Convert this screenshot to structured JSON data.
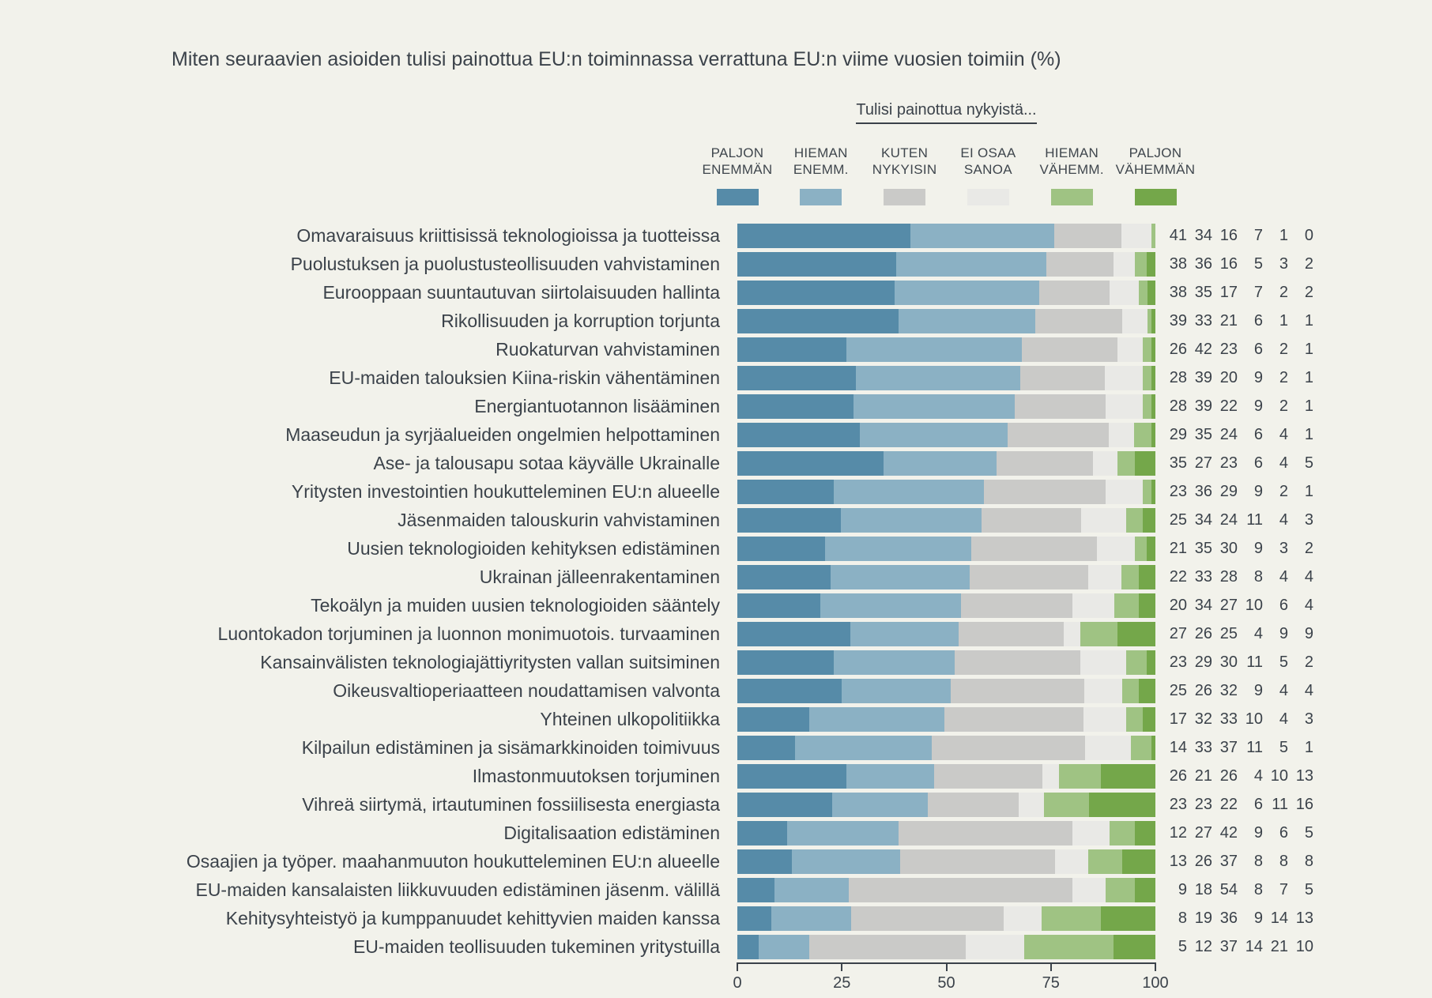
{
  "title": "Miten seuraavien asioiden tulisi painottua EU:n toiminnassa verrattuna EU:n viime vuosien toimiin (%)",
  "legend": {
    "header": "Tulisi painottua nykyistä...",
    "items": [
      {
        "name": "paljon-enemman",
        "line1": "PALJON",
        "line2": "ENEMMÄN",
        "color": "#568BA8"
      },
      {
        "name": "hieman-enemman",
        "line1": "HIEMAN",
        "line2": "ENEMM.",
        "color": "#8BB1C4"
      },
      {
        "name": "kuten-nykyisin",
        "line1": "KUTEN",
        "line2": "NYKYISIN",
        "color": "#CACAC8"
      },
      {
        "name": "ei-osaa-sanoa",
        "line1": "EI OSAA",
        "line2": "SANOA",
        "color": "#E9E9E6"
      },
      {
        "name": "hieman-vahemman",
        "line1": "HIEMAN",
        "line2": "VÄHEMM.",
        "color": "#9FC383"
      },
      {
        "name": "paljon-vahemman",
        "line1": "PALJON",
        "line2": "VÄHEMMÄN",
        "color": "#74A74A"
      }
    ]
  },
  "chart_data": {
    "type": "bar",
    "orientation": "horizontal",
    "stacked": true,
    "title": "Miten seuraavien asioiden tulisi painottua EU:n toiminnassa verrattuna EU:n viime vuosien toimiin (%)",
    "legend_title": "Tulisi painottua nykyistä...",
    "series_names": [
      "Paljon enemmän",
      "Hieman enemm.",
      "Kuten nykyisin",
      "Ei osaa sanoa",
      "Hieman vähemm.",
      "Paljon vähemmän"
    ],
    "series_colors": [
      "#568BA8",
      "#8BB1C4",
      "#CACAC8",
      "#E9E9E6",
      "#9FC383",
      "#74A74A"
    ],
    "xlim": [
      0,
      100
    ],
    "x_ticks": [
      0,
      25,
      50,
      75,
      100
    ],
    "value_labels_shown": true,
    "rows": [
      {
        "label": "Omavaraisuus kriittisissä teknologioissa ja tuotteissa",
        "values": [
          41,
          34,
          16,
          7,
          1,
          0
        ]
      },
      {
        "label": "Puolustuksen ja puolustusteollisuuden vahvistaminen",
        "values": [
          38,
          36,
          16,
          5,
          3,
          2
        ]
      },
      {
        "label": "Eurooppaan suuntautuvan siirtolaisuuden hallinta",
        "values": [
          38,
          35,
          17,
          7,
          2,
          2
        ]
      },
      {
        "label": "Rikollisuuden ja korruption torjunta",
        "values": [
          39,
          33,
          21,
          6,
          1,
          1
        ]
      },
      {
        "label": "Ruokaturvan vahvistaminen",
        "values": [
          26,
          42,
          23,
          6,
          2,
          1
        ]
      },
      {
        "label": "EU-maiden talouksien Kiina-riskin vähentäminen",
        "values": [
          28,
          39,
          20,
          9,
          2,
          1
        ]
      },
      {
        "label": "Energiantuotannon lisääminen",
        "values": [
          28,
          39,
          22,
          9,
          2,
          1
        ]
      },
      {
        "label": "Maaseudun ja syrjäalueiden ongelmien helpottaminen",
        "values": [
          29,
          35,
          24,
          6,
          4,
          1
        ]
      },
      {
        "label": "Ase- ja talousapu sotaa käyvälle Ukrainalle",
        "values": [
          35,
          27,
          23,
          6,
          4,
          5
        ]
      },
      {
        "label": "Yritysten investointien houkutteleminen EU:n alueelle",
        "values": [
          23,
          36,
          29,
          9,
          2,
          1
        ]
      },
      {
        "label": "Jäsenmaiden talouskurin vahvistaminen",
        "values": [
          25,
          34,
          24,
          11,
          4,
          3
        ]
      },
      {
        "label": "Uusien teknologioiden kehityksen edistäminen",
        "values": [
          21,
          35,
          30,
          9,
          3,
          2
        ]
      },
      {
        "label": "Ukrainan jälleenrakentaminen",
        "values": [
          22,
          33,
          28,
          8,
          4,
          4
        ]
      },
      {
        "label": "Tekoälyn ja muiden uusien teknologioiden sääntely",
        "values": [
          20,
          34,
          27,
          10,
          6,
          4
        ]
      },
      {
        "label": "Luontokadon torjuminen ja luonnon monimuotois. turvaaminen",
        "values": [
          27,
          26,
          25,
          4,
          9,
          9
        ]
      },
      {
        "label": "Kansainvälisten teknologiajättiyritysten vallan suitsiminen",
        "values": [
          23,
          29,
          30,
          11,
          5,
          2
        ]
      },
      {
        "label": "Oikeusvaltioperiaatteen noudattamisen valvonta",
        "values": [
          25,
          26,
          32,
          9,
          4,
          4
        ]
      },
      {
        "label": "Yhteinen ulkopolitiikka",
        "values": [
          17,
          32,
          33,
          10,
          4,
          3
        ]
      },
      {
        "label": "Kilpailun edistäminen ja sisämarkkinoiden toimivuus",
        "values": [
          14,
          33,
          37,
          11,
          5,
          1
        ]
      },
      {
        "label": "Ilmastonmuutoksen torjuminen",
        "values": [
          26,
          21,
          26,
          4,
          10,
          13
        ]
      },
      {
        "label": "Vihreä siirtymä, irtautuminen fossiilisesta energiasta",
        "values": [
          23,
          23,
          22,
          6,
          11,
          16
        ]
      },
      {
        "label": "Digitalisaation edistäminen",
        "values": [
          12,
          27,
          42,
          9,
          6,
          5
        ]
      },
      {
        "label": "Osaajien ja työper. maahanmuuton houkutteleminen EU:n alueelle",
        "values": [
          13,
          26,
          37,
          8,
          8,
          8
        ]
      },
      {
        "label": "EU-maiden kansalaisten liikkuvuuden edistäminen jäsenm. välillä",
        "values": [
          9,
          18,
          54,
          8,
          7,
          5
        ]
      },
      {
        "label": "Kehitysyhteistyö ja kumppanuudet kehittyvien maiden kanssa",
        "values": [
          8,
          19,
          36,
          9,
          14,
          13
        ]
      },
      {
        "label": "EU-maiden teollisuuden tukeminen yritystuilla",
        "values": [
          5,
          12,
          37,
          14,
          21,
          10
        ]
      }
    ]
  }
}
